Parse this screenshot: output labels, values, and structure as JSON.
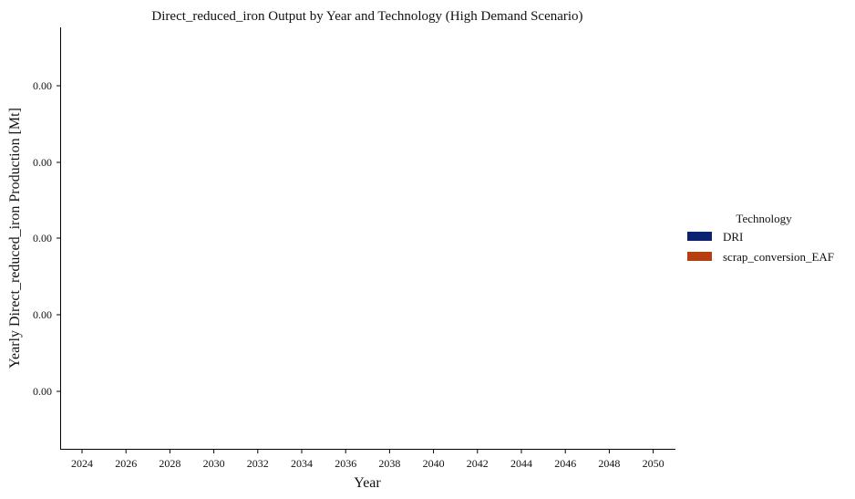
{
  "chart_data": {
    "type": "bar",
    "title": "Direct_reduced_iron Output by Year and Technology (High Demand Scenario)",
    "xlabel": "Year",
    "ylabel": "Yearly Direct_reduced_iron Production [Mt]",
    "categories": [
      "2024",
      "2026",
      "2028",
      "2030",
      "2032",
      "2034",
      "2036",
      "2038",
      "2040",
      "2042",
      "2044",
      "2046",
      "2048",
      "2050"
    ],
    "series": [
      {
        "name": "DRI",
        "color": "#0b2273",
        "values": [
          0,
          0,
          0,
          0,
          0,
          0,
          0,
          0,
          0,
          0,
          0,
          0,
          0,
          0
        ]
      },
      {
        "name": "scrap_conversion_EAF",
        "color": "#b63f10",
        "values": [
          0,
          0,
          0,
          0,
          0,
          0,
          0,
          0,
          0,
          0,
          0,
          0,
          0,
          0
        ]
      }
    ],
    "ytick_labels": [
      "0.00",
      "0.00",
      "0.00",
      "0.00",
      "0.00"
    ],
    "legend": {
      "title": "Technology",
      "position": "right"
    },
    "grid": false
  }
}
